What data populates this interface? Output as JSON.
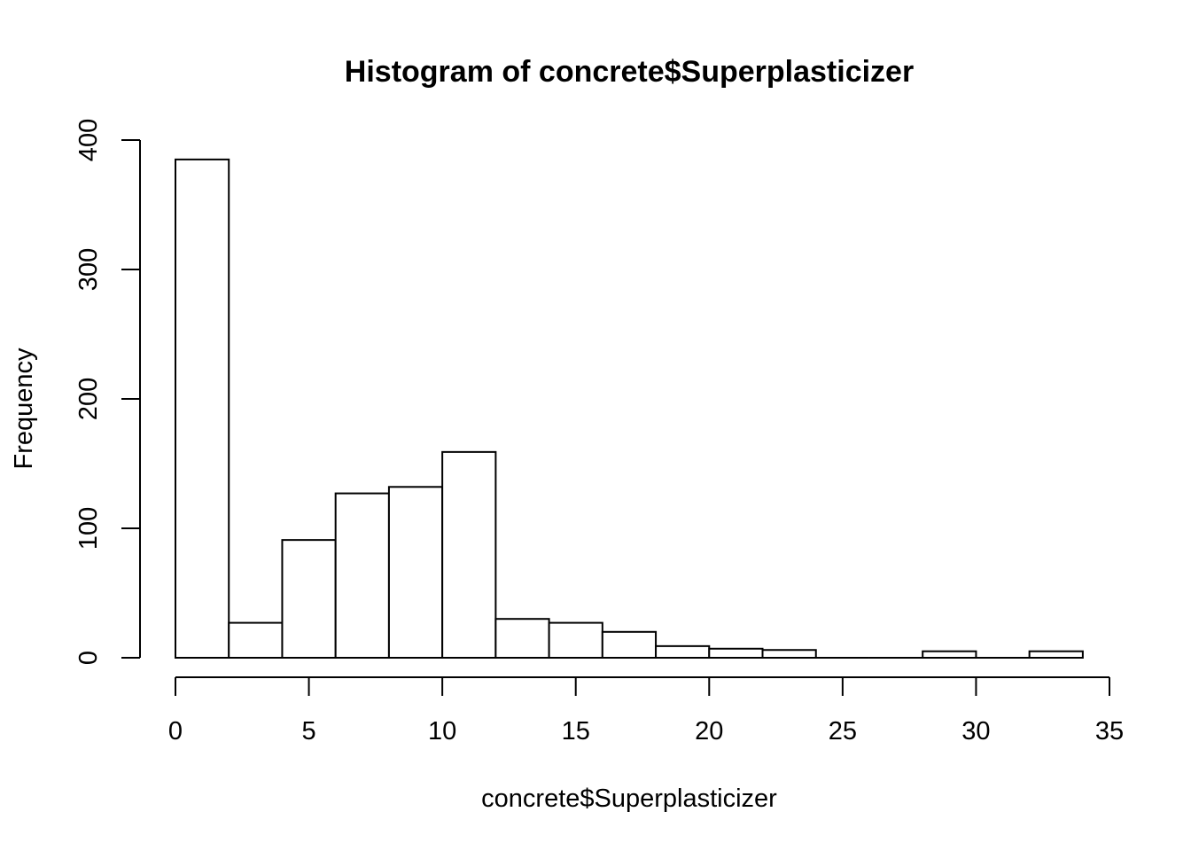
{
  "chart_data": {
    "type": "bar",
    "title": "Histogram of concrete$Superplasticizer",
    "xlabel": "concrete$Superplasticizer",
    "ylabel": "Frequency",
    "bin_edges": [
      0,
      2,
      4,
      6,
      8,
      10,
      12,
      14,
      16,
      18,
      20,
      22,
      24,
      26,
      28,
      30,
      32,
      34
    ],
    "values": [
      385,
      27,
      91,
      127,
      132,
      159,
      30,
      27,
      20,
      9,
      7,
      6,
      0,
      0,
      5,
      0,
      5
    ],
    "xlim": [
      0,
      35
    ],
    "ylim": [
      0,
      400
    ],
    "x_ticks": [
      0,
      5,
      10,
      15,
      20,
      25,
      30,
      35
    ],
    "y_ticks": [
      0,
      100,
      200,
      300,
      400
    ],
    "bar_fill": "#ffffff",
    "bar_stroke": "#000000",
    "grid": false,
    "legend": "none"
  }
}
